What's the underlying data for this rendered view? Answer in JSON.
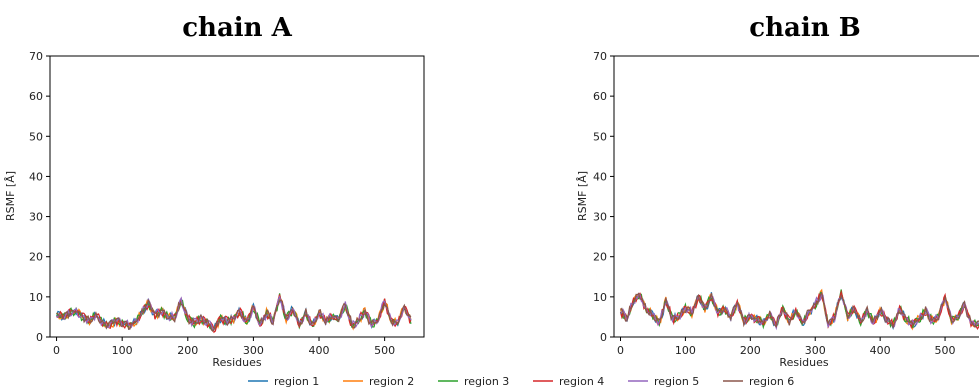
{
  "chart_data": {
    "type": "line",
    "legend_placement": "bottom-center",
    "grid": false,
    "colors": [
      "#1f77b4",
      "#ff7f0e",
      "#2ca02c",
      "#d62728",
      "#9467bd",
      "#8c564b"
    ],
    "series_names": [
      "region 1",
      "region 2",
      "region 3",
      "region 4",
      "region 5",
      "region 6"
    ],
    "panels": [
      {
        "title": "chain A",
        "xlabel": "Residues",
        "ylabel": "RSMF [Å]",
        "xlim": [
          -10,
          560
        ],
        "ylim": [
          0,
          70
        ],
        "xticks": [
          0,
          100,
          200,
          300,
          400,
          500
        ],
        "yticks": [
          0,
          10,
          20,
          30,
          40,
          50,
          60,
          70
        ],
        "profile": [
          [
            0,
            5.5
          ],
          [
            10,
            5
          ],
          [
            20,
            6
          ],
          [
            30,
            6.5
          ],
          [
            40,
            5
          ],
          [
            50,
            4
          ],
          [
            60,
            5.5
          ],
          [
            70,
            3.5
          ],
          [
            80,
            3
          ],
          [
            90,
            4
          ],
          [
            100,
            3.5
          ],
          [
            110,
            3
          ],
          [
            120,
            3.5
          ],
          [
            130,
            6
          ],
          [
            140,
            8.5
          ],
          [
            150,
            5.5
          ],
          [
            160,
            6.5
          ],
          [
            170,
            5
          ],
          [
            180,
            5
          ],
          [
            190,
            9
          ],
          [
            200,
            4.5
          ],
          [
            210,
            3.5
          ],
          [
            220,
            4.5
          ],
          [
            230,
            3.5
          ],
          [
            240,
            2
          ],
          [
            250,
            4.5
          ],
          [
            260,
            4
          ],
          [
            270,
            4.5
          ],
          [
            280,
            6.5
          ],
          [
            290,
            3.5
          ],
          [
            300,
            7.5
          ],
          [
            310,
            3
          ],
          [
            320,
            6
          ],
          [
            330,
            4
          ],
          [
            340,
            10
          ],
          [
            350,
            4.5
          ],
          [
            360,
            7
          ],
          [
            370,
            3
          ],
          [
            380,
            6
          ],
          [
            390,
            3
          ],
          [
            400,
            6
          ],
          [
            410,
            4
          ],
          [
            420,
            5
          ],
          [
            430,
            4.5
          ],
          [
            440,
            8
          ],
          [
            450,
            3
          ],
          [
            460,
            4
          ],
          [
            470,
            6.5
          ],
          [
            480,
            3
          ],
          [
            490,
            4
          ],
          [
            500,
            9
          ],
          [
            510,
            4
          ],
          [
            520,
            3.5
          ],
          [
            530,
            7.5
          ],
          [
            540,
            4
          ]
        ]
      },
      {
        "title": "chain B",
        "xlabel": "Residues",
        "ylabel": "RSMF [Å]",
        "xlim": [
          -10,
          560
        ],
        "ylim": [
          0,
          70
        ],
        "xticks": [
          0,
          100,
          200,
          300,
          400,
          500
        ],
        "yticks": [
          0,
          10,
          20,
          30,
          40,
          50,
          60,
          70
        ],
        "profile": [
          [
            0,
            6.5
          ],
          [
            10,
            4.5
          ],
          [
            20,
            9
          ],
          [
            30,
            10.5
          ],
          [
            40,
            6.5
          ],
          [
            50,
            5.5
          ],
          [
            60,
            3.5
          ],
          [
            70,
            9
          ],
          [
            80,
            4.5
          ],
          [
            90,
            5
          ],
          [
            100,
            7
          ],
          [
            110,
            6
          ],
          [
            120,
            10
          ],
          [
            130,
            7
          ],
          [
            140,
            10
          ],
          [
            150,
            6
          ],
          [
            160,
            7
          ],
          [
            170,
            5
          ],
          [
            180,
            8.5
          ],
          [
            190,
            4
          ],
          [
            200,
            5
          ],
          [
            210,
            4.5
          ],
          [
            220,
            3.5
          ],
          [
            230,
            5.5
          ],
          [
            240,
            3
          ],
          [
            250,
            7
          ],
          [
            260,
            4
          ],
          [
            270,
            6.5
          ],
          [
            280,
            3.5
          ],
          [
            290,
            6
          ],
          [
            300,
            8
          ],
          [
            310,
            11
          ],
          [
            320,
            3
          ],
          [
            330,
            5
          ],
          [
            340,
            11
          ],
          [
            350,
            5
          ],
          [
            360,
            7
          ],
          [
            370,
            4
          ],
          [
            380,
            6.5
          ],
          [
            390,
            3.5
          ],
          [
            400,
            6.5
          ],
          [
            410,
            4.5
          ],
          [
            420,
            3
          ],
          [
            430,
            7
          ],
          [
            440,
            4.5
          ],
          [
            450,
            3
          ],
          [
            460,
            4.5
          ],
          [
            470,
            6.5
          ],
          [
            480,
            4
          ],
          [
            490,
            5
          ],
          [
            500,
            10
          ],
          [
            510,
            4
          ],
          [
            520,
            5
          ],
          [
            530,
            8
          ],
          [
            540,
            3.5
          ],
          [
            550,
            3
          ],
          [
            560,
            3
          ]
        ]
      }
    ]
  }
}
